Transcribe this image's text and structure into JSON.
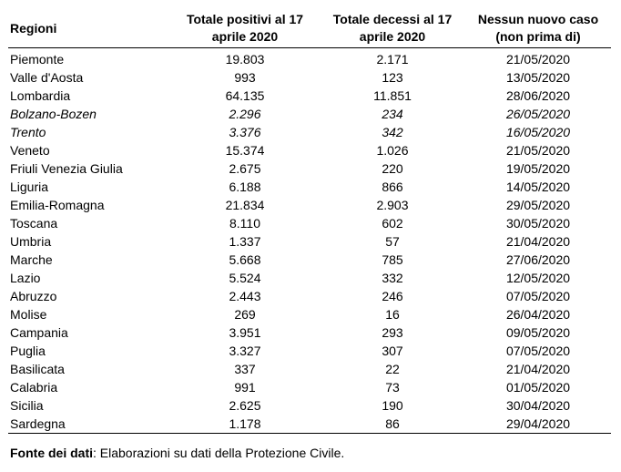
{
  "table": {
    "headers": {
      "region": "Regioni",
      "positives_line1": "Totale positivi al 17",
      "positives_line2": "aprile 2020",
      "deaths_line1": "Totale decessi al 17",
      "deaths_line2": "aprile 2020",
      "nocase_line1": "Nessun nuovo caso",
      "nocase_line2": "(non prima di)"
    },
    "rows": [
      {
        "region": "Piemonte",
        "positives": "19.803",
        "deaths": "2.171",
        "no_new_case": "21/05/2020",
        "italic": false
      },
      {
        "region": "Valle d'Aosta",
        "positives": "993",
        "deaths": "123",
        "no_new_case": "13/05/2020",
        "italic": false
      },
      {
        "region": "Lombardia",
        "positives": "64.135",
        "deaths": "11.851",
        "no_new_case": "28/06/2020",
        "italic": false
      },
      {
        "region": "Bolzano-Bozen",
        "positives": "2.296",
        "deaths": "234",
        "no_new_case": "26/05/2020",
        "italic": true
      },
      {
        "region": "Trento",
        "positives": "3.376",
        "deaths": "342",
        "no_new_case": "16/05/2020",
        "italic": true
      },
      {
        "region": "Veneto",
        "positives": "15.374",
        "deaths": "1.026",
        "no_new_case": "21/05/2020",
        "italic": false
      },
      {
        "region": "Friuli Venezia Giulia",
        "positives": "2.675",
        "deaths": "220",
        "no_new_case": "19/05/2020",
        "italic": false
      },
      {
        "region": "Liguria",
        "positives": "6.188",
        "deaths": "866",
        "no_new_case": "14/05/2020",
        "italic": false
      },
      {
        "region": "Emilia-Romagna",
        "positives": "21.834",
        "deaths": "2.903",
        "no_new_case": "29/05/2020",
        "italic": false
      },
      {
        "region": "Toscana",
        "positives": "8.110",
        "deaths": "602",
        "no_new_case": "30/05/2020",
        "italic": false
      },
      {
        "region": "Umbria",
        "positives": "1.337",
        "deaths": "57",
        "no_new_case": "21/04/2020",
        "italic": false
      },
      {
        "region": "Marche",
        "positives": "5.668",
        "deaths": "785",
        "no_new_case": "27/06/2020",
        "italic": false
      },
      {
        "region": "Lazio",
        "positives": "5.524",
        "deaths": "332",
        "no_new_case": "12/05/2020",
        "italic": false
      },
      {
        "region": "Abruzzo",
        "positives": "2.443",
        "deaths": "246",
        "no_new_case": "07/05/2020",
        "italic": false
      },
      {
        "region": "Molise",
        "positives": "269",
        "deaths": "16",
        "no_new_case": "26/04/2020",
        "italic": false
      },
      {
        "region": "Campania",
        "positives": "3.951",
        "deaths": "293",
        "no_new_case": "09/05/2020",
        "italic": false
      },
      {
        "region": "Puglia",
        "positives": "3.327",
        "deaths": "307",
        "no_new_case": "07/05/2020",
        "italic": false
      },
      {
        "region": "Basilicata",
        "positives": "337",
        "deaths": "22",
        "no_new_case": "21/04/2020",
        "italic": false
      },
      {
        "region": "Calabria",
        "positives": "991",
        "deaths": "73",
        "no_new_case": "01/05/2020",
        "italic": false
      },
      {
        "region": "Sicilia",
        "positives": "2.625",
        "deaths": "190",
        "no_new_case": "30/04/2020",
        "italic": false
      },
      {
        "region": "Sardegna",
        "positives": "1.178",
        "deaths": "86",
        "no_new_case": "29/04/2020",
        "italic": false
      }
    ]
  },
  "footer": {
    "label": "Fonte dei dati",
    "text": ": Elaborazioni su dati della Protezione Civile."
  }
}
